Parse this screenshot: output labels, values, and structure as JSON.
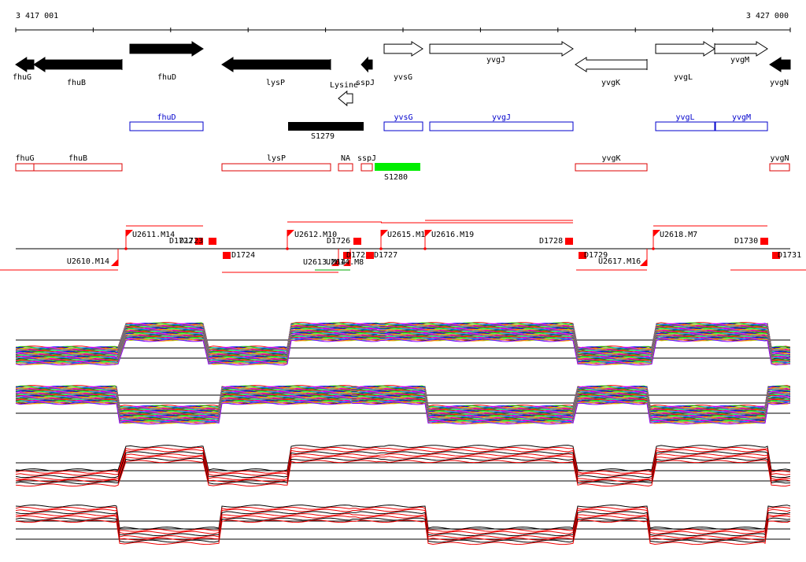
{
  "coordinates": {
    "start": "3 417 001",
    "end": "3 427 000"
  },
  "genes": [
    {
      "label": "fhuG",
      "strand": "-",
      "fill": "black"
    },
    {
      "label": "fhuB",
      "strand": "-",
      "fill": "black"
    },
    {
      "label": "fhuD",
      "strand": "+",
      "fill": "black"
    },
    {
      "label": "lysP",
      "strand": "-",
      "fill": "black"
    },
    {
      "label": "Lysine",
      "strand": "-",
      "fill": "white"
    },
    {
      "label": "sspJ",
      "strand": "-",
      "fill": "black"
    },
    {
      "label": "yvsG",
      "strand": "+",
      "fill": "white"
    },
    {
      "label": "yvgJ",
      "strand": "+",
      "fill": "white"
    },
    {
      "label": "yvgK",
      "strand": "-",
      "fill": "white"
    },
    {
      "label": "yvgL",
      "strand": "+",
      "fill": "white"
    },
    {
      "label": "yvgM",
      "strand": "+",
      "fill": "white"
    },
    {
      "label": "yvgN",
      "strand": "-",
      "fill": "black"
    }
  ],
  "forward_transcripts": {
    "boxes": [
      "fhuD",
      "yvsG",
      "yvgJ",
      "yvgL",
      "yvgM"
    ],
    "segment_label": "S1279"
  },
  "reverse_transcripts": {
    "boxes": [
      "fhuG",
      "fhuB",
      "lysP",
      "NA",
      "sspJ",
      "yvgK",
      "yvgN"
    ],
    "segment_label": "S1280"
  },
  "upshifts": [
    "U2610.M14",
    "U2611.M14",
    "U2612.M10",
    "U2613.M14",
    "U2614.M8",
    "U2615.M1",
    "U2616.M19",
    "U2617.M16",
    "U2618.M7"
  ],
  "downshifts": [
    "D1722",
    "D1723",
    "D1724",
    "D1725",
    "D1726",
    "D1727",
    "D1728",
    "D1729",
    "D1730",
    "D1731"
  ],
  "colors": {
    "gene": "#000000",
    "forward_box": "#0000cc",
    "reverse_box": "#dd0000",
    "segment_forward": "#000000",
    "segment_reverse": "#00ee00",
    "shift_marker": "#ff0000"
  }
}
